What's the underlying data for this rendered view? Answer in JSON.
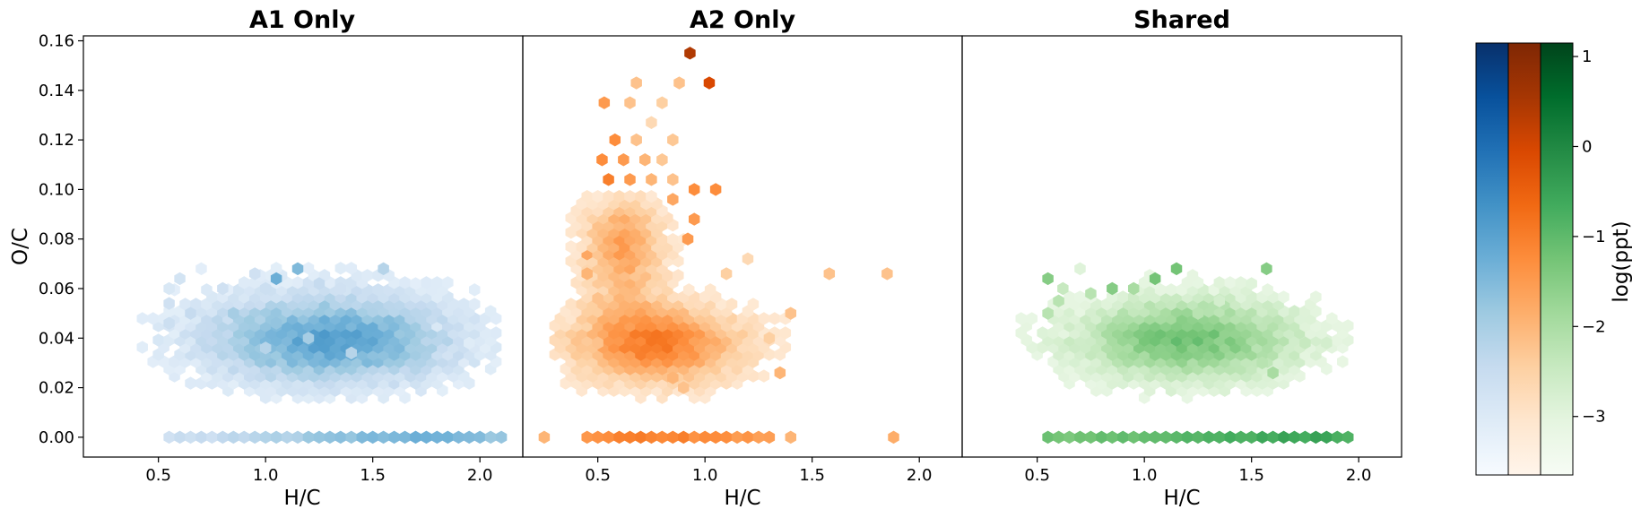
{
  "chart_data": [
    {
      "type": "heatmap",
      "subtype": "hexbin",
      "title": "A1 Only",
      "xlabel": "H/C",
      "ylabel": "O/C",
      "xlim": [
        0.15,
        2.2
      ],
      "ylim": [
        -0.008,
        0.162
      ],
      "xticks": [
        "0.5",
        "1.0",
        "1.5",
        "2.0"
      ],
      "yticks": [
        "0.00",
        "0.02",
        "0.04",
        "0.06",
        "0.08",
        "0.10",
        "0.12",
        "0.14",
        "0.16"
      ],
      "colormap": "Blues",
      "color_low": "#f7fbff",
      "color_high": "#08306b",
      "density_blobs": [
        {
          "x": 1.3,
          "y": 0.04,
          "sx": 0.45,
          "sy": 0.014,
          "weight": 0.55
        }
      ],
      "points": [
        [
          0.7,
          0.068,
          0.1
        ],
        [
          0.95,
          0.066,
          0.2
        ],
        [
          1.05,
          0.064,
          0.5
        ],
        [
          1.15,
          0.068,
          0.45
        ],
        [
          1.55,
          0.068,
          0.3
        ],
        [
          1.25,
          0.062,
          0.25
        ],
        [
          1.35,
          0.06,
          0.2
        ],
        [
          0.6,
          0.064,
          0.18
        ],
        [
          0.8,
          0.06,
          0.2
        ],
        [
          1.0,
          0.06,
          0.22
        ],
        [
          1.7,
          0.062,
          0.1
        ],
        [
          0.55,
          0.06,
          0.15
        ],
        [
          0.55,
          0.054,
          0.2
        ],
        [
          0.55,
          0.046,
          0.22
        ],
        [
          0.65,
          0.05,
          0.25
        ],
        [
          1.95,
          0.038,
          0.12
        ],
        [
          1.8,
          0.045,
          0.15
        ],
        [
          0.85,
          0.05,
          0.35
        ],
        [
          1.05,
          0.046,
          0.4
        ],
        [
          1.2,
          0.04,
          0.35
        ],
        [
          1.0,
          0.036,
          0.3
        ],
        [
          1.4,
          0.034,
          0.3
        ]
      ],
      "baseline": {
        "y": 0.0,
        "x": [
          0.55,
          2.1
        ],
        "low": 0.22,
        "high": 0.5,
        "peak_x": 1.7
      }
    },
    {
      "type": "heatmap",
      "subtype": "hexbin",
      "title": "A2 Only",
      "xlabel": "H/C",
      "xlim": [
        0.15,
        2.2
      ],
      "ylim": [
        -0.008,
        0.162
      ],
      "xticks": [
        "0.5",
        "1.0",
        "1.5",
        "2.0"
      ],
      "colormap": "Oranges",
      "color_low": "#fff5eb",
      "color_high": "#7f2704",
      "density_blobs": [
        {
          "x": 0.78,
          "y": 0.038,
          "sx": 0.3,
          "sy": 0.012,
          "weight": 0.55
        },
        {
          "x": 0.62,
          "y": 0.078,
          "sx": 0.14,
          "sy": 0.016,
          "weight": 0.42
        }
      ],
      "points": [
        [
          0.93,
          0.155,
          0.85
        ],
        [
          1.02,
          0.143,
          0.75
        ],
        [
          0.68,
          0.143,
          0.3
        ],
        [
          0.88,
          0.143,
          0.3
        ],
        [
          0.53,
          0.135,
          0.45
        ],
        [
          0.65,
          0.135,
          0.3
        ],
        [
          0.8,
          0.135,
          0.25
        ],
        [
          0.75,
          0.127,
          0.2
        ],
        [
          0.58,
          0.12,
          0.5
        ],
        [
          0.68,
          0.12,
          0.3
        ],
        [
          0.85,
          0.12,
          0.28
        ],
        [
          0.52,
          0.112,
          0.5
        ],
        [
          0.62,
          0.112,
          0.45
        ],
        [
          0.72,
          0.112,
          0.35
        ],
        [
          0.8,
          0.112,
          0.28
        ],
        [
          0.55,
          0.104,
          0.55
        ],
        [
          0.65,
          0.104,
          0.45
        ],
        [
          0.75,
          0.104,
          0.35
        ],
        [
          0.85,
          0.104,
          0.3
        ],
        [
          0.95,
          0.1,
          0.5
        ],
        [
          1.05,
          0.1,
          0.5
        ],
        [
          0.85,
          0.096,
          0.4
        ],
        [
          0.95,
          0.088,
          0.45
        ],
        [
          0.92,
          0.08,
          0.45
        ],
        [
          1.2,
          0.072,
          0.2
        ],
        [
          1.1,
          0.066,
          0.25
        ],
        [
          1.58,
          0.066,
          0.3
        ],
        [
          1.85,
          0.066,
          0.3
        ],
        [
          1.4,
          0.05,
          0.3
        ],
        [
          1.35,
          0.026,
          0.35
        ],
        [
          1.3,
          0.04,
          0.25
        ],
        [
          0.85,
          0.024,
          0.35
        ],
        [
          0.9,
          0.02,
          0.3
        ],
        [
          0.45,
          0.074,
          0.4
        ],
        [
          0.45,
          0.066,
          0.35
        ],
        [
          0.5,
          0.056,
          0.3
        ],
        [
          0.5,
          0.038,
          0.3
        ]
      ],
      "baseline": {
        "y": 0.0,
        "x": [
          0.45,
          1.3
        ],
        "low": 0.35,
        "high": 0.55,
        "peak_x": 0.75
      },
      "baseline_extra": [
        [
          0.25,
          0.0,
          0.35
        ],
        [
          1.4,
          0.0,
          0.35
        ],
        [
          1.88,
          0.0,
          0.38
        ]
      ]
    },
    {
      "type": "heatmap",
      "subtype": "hexbin",
      "title": "Shared",
      "xlabel": "H/C",
      "xlim": [
        0.15,
        2.2
      ],
      "ylim": [
        -0.008,
        0.162
      ],
      "xticks": [
        "0.5",
        "1.0",
        "1.5",
        "2.0"
      ],
      "colormap": "Greens",
      "color_low": "#f7fcf5",
      "color_high": "#00441b",
      "density_blobs": [
        {
          "x": 1.2,
          "y": 0.04,
          "sx": 0.4,
          "sy": 0.013,
          "weight": 0.5
        }
      ],
      "points": [
        [
          0.7,
          0.068,
          0.15
        ],
        [
          1.05,
          0.064,
          0.5
        ],
        [
          1.15,
          0.068,
          0.5
        ],
        [
          1.57,
          0.068,
          0.45
        ],
        [
          1.5,
          0.062,
          0.15
        ],
        [
          0.55,
          0.064,
          0.45
        ],
        [
          0.62,
          0.06,
          0.25
        ],
        [
          0.85,
          0.06,
          0.45
        ],
        [
          0.95,
          0.06,
          0.35
        ],
        [
          0.75,
          0.058,
          0.3
        ],
        [
          0.6,
          0.055,
          0.3
        ],
        [
          1.35,
          0.055,
          0.2
        ],
        [
          0.55,
          0.05,
          0.3
        ],
        [
          1.25,
          0.05,
          0.3
        ],
        [
          1.75,
          0.038,
          0.25
        ],
        [
          1.85,
          0.038,
          0.2
        ],
        [
          1.55,
          0.03,
          0.3
        ],
        [
          1.6,
          0.026,
          0.35
        ]
      ],
      "baseline": {
        "y": 0.0,
        "x": [
          0.55,
          1.95
        ],
        "low": 0.5,
        "high": 0.65,
        "peak_x": 1.7
      }
    }
  ],
  "colorbar": {
    "label": "log(ppt)",
    "ticks": [
      "1",
      "0",
      "−1",
      "−2",
      "−3"
    ],
    "tick_values": [
      1,
      0,
      -1,
      -2,
      -3
    ],
    "range": [
      -3.65,
      1.15
    ],
    "gradients": [
      [
        "#f7fbff",
        "#deebf7",
        "#c6dbef",
        "#9ecae1",
        "#6baed6",
        "#4292c6",
        "#2171b5",
        "#08519c",
        "#08306b"
      ],
      [
        "#fff5eb",
        "#fee6ce",
        "#fdd0a2",
        "#fdae6b",
        "#fd8d3c",
        "#f16913",
        "#d94801",
        "#a63603",
        "#7f2704"
      ],
      [
        "#f7fcf5",
        "#e5f5e0",
        "#c7e9c0",
        "#a1d99b",
        "#74c476",
        "#41ab5d",
        "#238b45",
        "#006d2c",
        "#00441b"
      ]
    ]
  }
}
